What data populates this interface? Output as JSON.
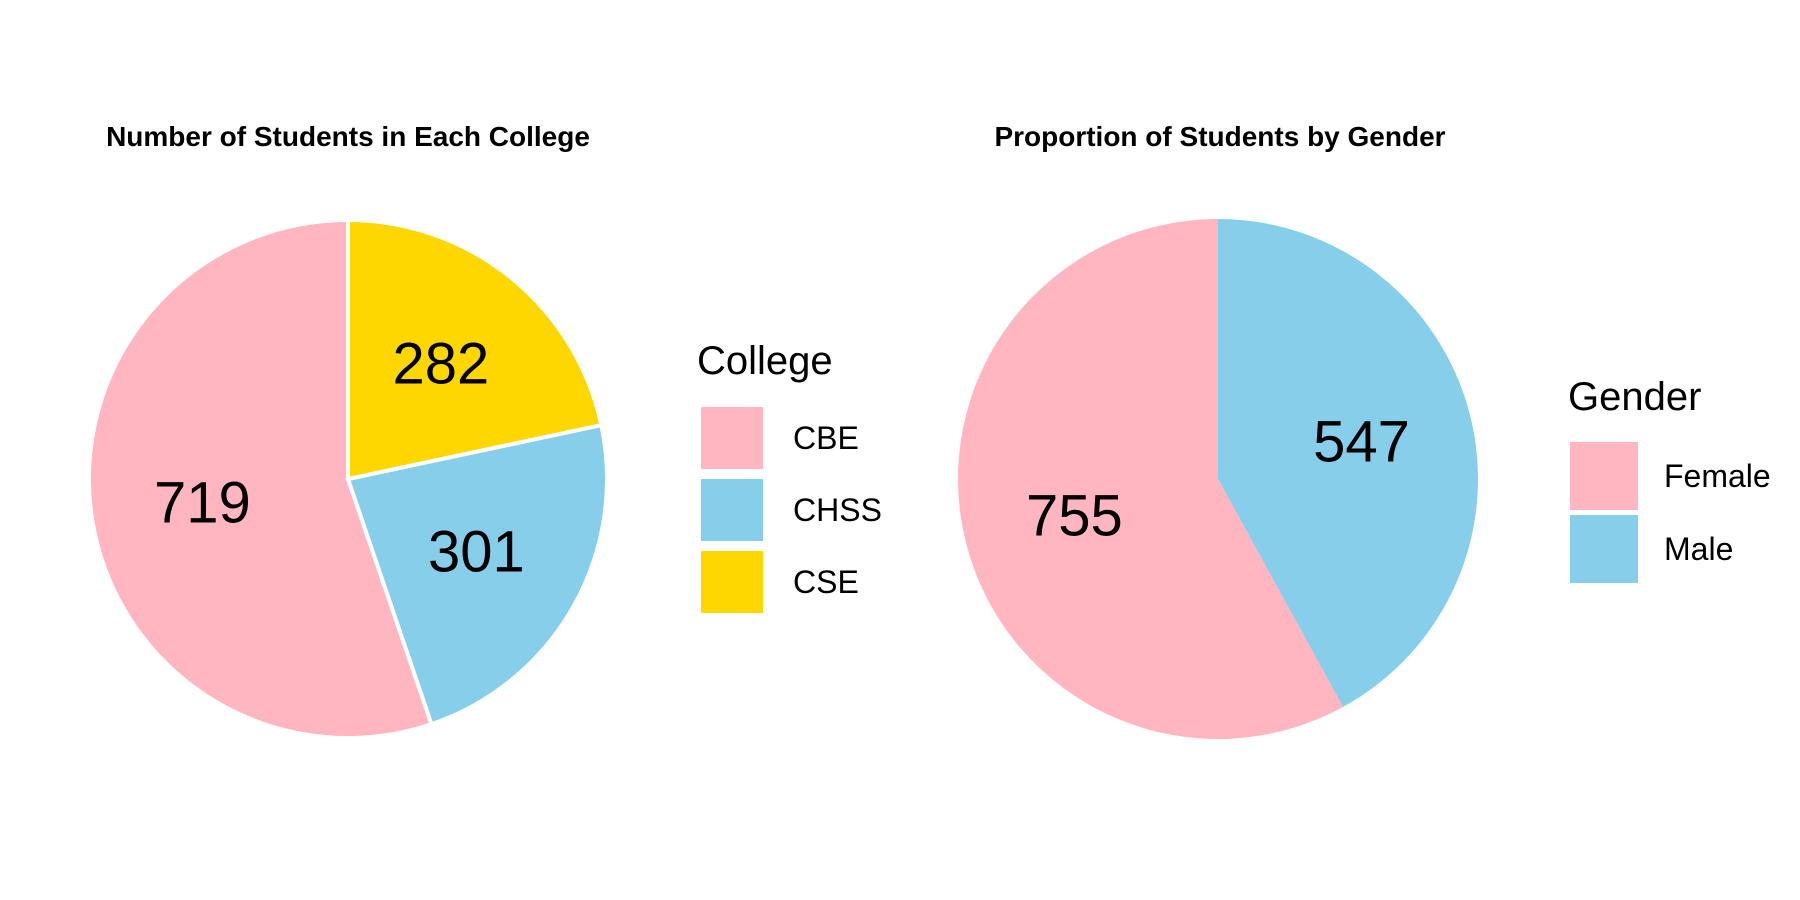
{
  "chart_data": [
    {
      "type": "pie",
      "title": "Number of Students in Each College",
      "categories": [
        "CBE",
        "CHSS",
        "CSE"
      ],
      "values": [
        719,
        301,
        282
      ],
      "colors": [
        "#FFB6C1",
        "#87CEEB",
        "#FFD700"
      ],
      "legend_title": "College",
      "legend_position": "right",
      "slice_border": "white",
      "start_angle": "top",
      "direction": "counterclockwise"
    },
    {
      "type": "pie",
      "title": "Proportion of Students by Gender",
      "categories": [
        "Female",
        "Male"
      ],
      "values": [
        755,
        547
      ],
      "colors": [
        "#FFB6C1",
        "#87CEEB"
      ],
      "legend_title": "Gender",
      "legend_position": "right",
      "slice_border": "none",
      "start_angle": "top",
      "direction": "counterclockwise"
    }
  ]
}
